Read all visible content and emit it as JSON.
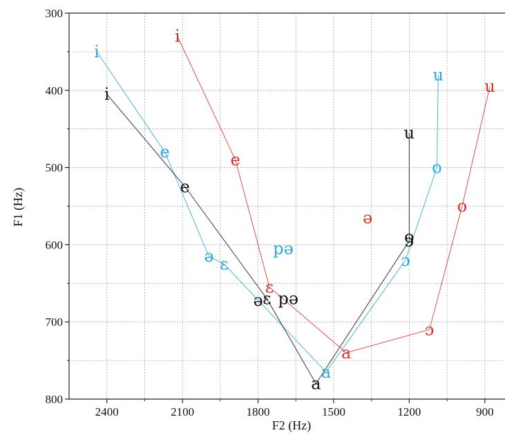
{
  "chart_data": {
    "type": "scatter",
    "title": "",
    "xlabel": "F2 (Hz)",
    "ylabel": "F1 (Hz)",
    "x_axis": {
      "reversed": true,
      "ticks": [
        "2400",
        "2100",
        "1800",
        "1500",
        "1200",
        "900"
      ]
    },
    "y_axis": {
      "reversed": true,
      "ticks": [
        "300",
        "400",
        "500",
        "600",
        "700",
        "800"
      ]
    },
    "xlim": [
      2550,
      820
    ],
    "ylim": [
      800,
      300
    ],
    "grid": true,
    "series": [
      {
        "color": "#29a8d8",
        "points": [
          {
            "label": "i",
            "f2": 2440,
            "f1": 350,
            "on_line": true
          },
          {
            "label": "e",
            "f2": 2170,
            "f1": 480,
            "on_line": true
          },
          {
            "label": "ə",
            "f2": 1995,
            "f1": 615,
            "on_line": true
          },
          {
            "label": "ɛ",
            "f2": 1935,
            "f1": 625,
            "on_line": true
          },
          {
            "label": "a",
            "f2": 1530,
            "f1": 765,
            "on_line": true
          },
          {
            "label": "ɔ",
            "f2": 1215,
            "f1": 620,
            "on_line": true
          },
          {
            "label": "o",
            "f2": 1090,
            "f1": 500,
            "on_line": true
          },
          {
            "label": "u",
            "f2": 1085,
            "f1": 380,
            "on_line": true
          },
          {
            "label": "pə",
            "f2": 1700,
            "f1": 605,
            "on_line": false
          }
        ]
      },
      {
        "color": "#111111",
        "points": [
          {
            "label": "i",
            "f2": 2400,
            "f1": 405,
            "on_line": true
          },
          {
            "label": "e",
            "f2": 2090,
            "f1": 525,
            "on_line": true
          },
          {
            "label": "ɛ",
            "f2": 1765,
            "f1": 670,
            "on_line": true
          },
          {
            "label": "ə",
            "f2": 1800,
            "f1": 672,
            "on_line": false
          },
          {
            "label": "a",
            "f2": 1570,
            "f1": 780,
            "on_line": true
          },
          {
            "label": "ɔ",
            "f2": 1200,
            "f1": 595,
            "on_line": true
          },
          {
            "label": "o",
            "f2": 1200,
            "f1": 590,
            "on_line": true
          },
          {
            "label": "u",
            "f2": 1200,
            "f1": 455,
            "on_line": true
          },
          {
            "label": "pə",
            "f2": 1680,
            "f1": 670,
            "on_line": false
          }
        ]
      },
      {
        "color": "#d2322d",
        "points": [
          {
            "label": "i",
            "f2": 2120,
            "f1": 330,
            "on_line": true
          },
          {
            "label": "e",
            "f2": 1890,
            "f1": 490,
            "on_line": true
          },
          {
            "label": "ɛ",
            "f2": 1755,
            "f1": 655,
            "on_line": true
          },
          {
            "label": "a",
            "f2": 1450,
            "f1": 740,
            "on_line": true
          },
          {
            "label": "ɔ",
            "f2": 1120,
            "f1": 710,
            "on_line": true
          },
          {
            "label": "o",
            "f2": 990,
            "f1": 550,
            "on_line": true
          },
          {
            "label": "u",
            "f2": 880,
            "f1": 395,
            "on_line": true
          },
          {
            "label": "ə",
            "f2": 1365,
            "f1": 565,
            "on_line": false
          }
        ]
      }
    ]
  }
}
